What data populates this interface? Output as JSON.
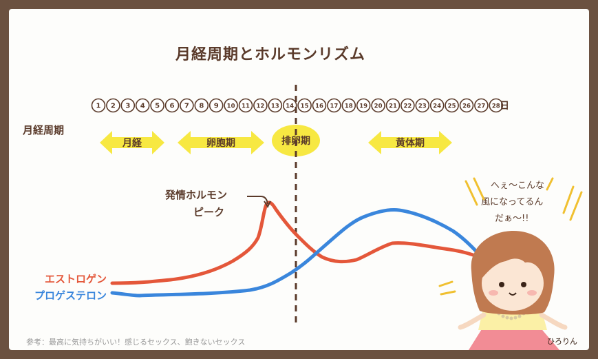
{
  "title": "月経周期とホルモンリズム",
  "cycle_days": [
    "1",
    "2",
    "3",
    "4",
    "5",
    "6",
    "7",
    "8",
    "9",
    "10",
    "11",
    "12",
    "13",
    "14",
    "15",
    "16",
    "17",
    "18",
    "19",
    "20",
    "21",
    "22",
    "23",
    "24",
    "25",
    "26",
    "27",
    "28"
  ],
  "day_unit": "日",
  "row_label": "月経周期",
  "phases": {
    "menstrual": "月経",
    "follicular": "卵胞期",
    "ovulation": "排卵期",
    "luteal": "黄体期"
  },
  "annotation": {
    "line1": "発情ホルモン",
    "line2": "ピーク"
  },
  "legend": {
    "estrogen": "エストロゲン",
    "progesterone": "プロゲステロン"
  },
  "speech": {
    "line1": "へぇ〜こんな",
    "line2": "風になってるん",
    "line3": "だぁ〜!!"
  },
  "signature": "ひろりん",
  "footnote": "参考：最高に気持ちがいい！感じるセックス、飽きないセックス",
  "colors": {
    "estrogen": "#e4573a",
    "progesterone": "#3a86dc",
    "arrow_fill": "#f7e842",
    "text": "#5a3a2a",
    "frame": "#6b5140"
  }
}
